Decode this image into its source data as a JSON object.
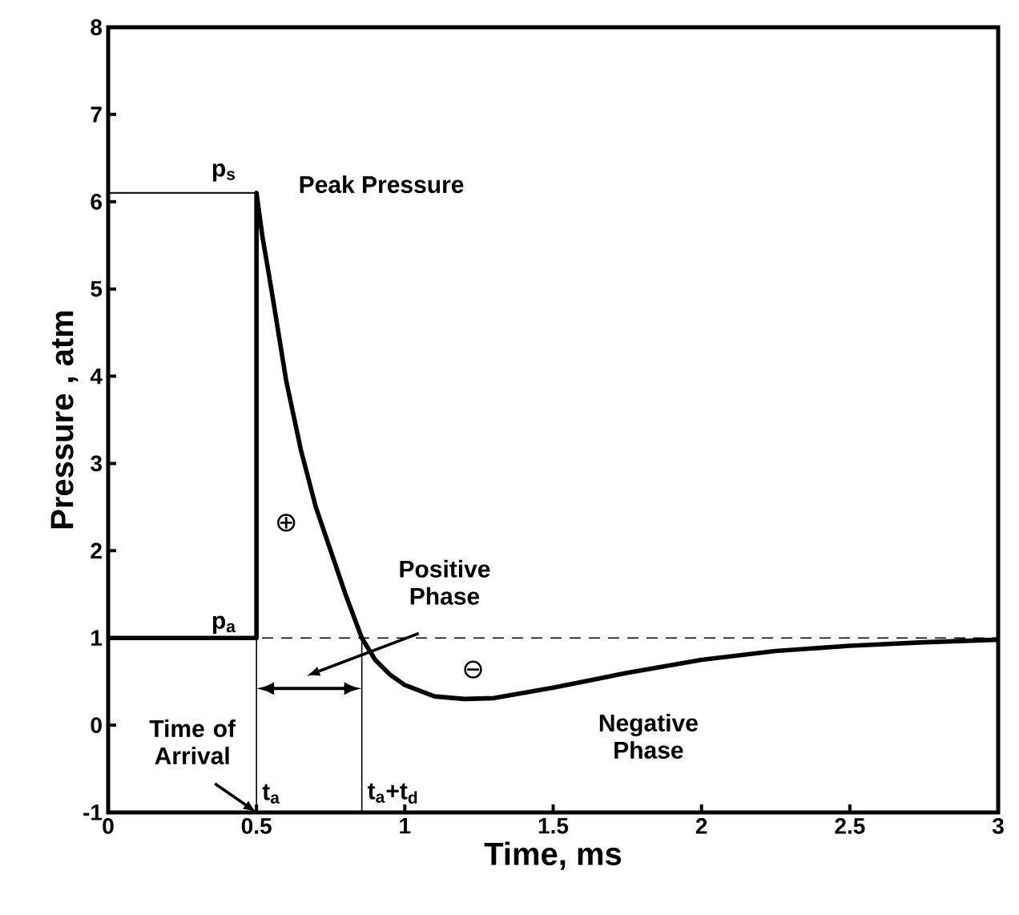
{
  "chart_data": {
    "type": "line",
    "xlabel": "Time, ms",
    "ylabel": "Pressure , atm",
    "xlim": [
      0,
      3
    ],
    "ylim": [
      -1,
      8
    ],
    "xticks": [
      0,
      0.5,
      1,
      1.5,
      2,
      2.5,
      3
    ],
    "yticks": [
      -1,
      0,
      1,
      2,
      3,
      4,
      5,
      6,
      7,
      8
    ],
    "marker": "none",
    "series": [
      {
        "color": "#000000",
        "x": [
          0,
          0.5,
          0.5,
          0.52,
          0.55,
          0.6,
          0.65,
          0.7,
          0.75,
          0.8,
          0.855,
          0.9,
          0.95,
          1.0,
          1.1,
          1.2,
          1.3,
          1.5,
          1.75,
          2.0,
          2.25,
          2.5,
          2.75,
          3.0
        ],
        "values": [
          1,
          1,
          6.1,
          5.6,
          5.0,
          3.95,
          3.15,
          2.5,
          2.0,
          1.5,
          1.0,
          0.75,
          0.58,
          0.46,
          0.33,
          0.3,
          0.31,
          0.43,
          0.6,
          0.75,
          0.85,
          0.91,
          0.95,
          0.98
        ]
      },
      {
        "color": "#000000",
        "x": [
          0,
          0.5
        ],
        "values": [
          6.1,
          6.1
        ]
      }
    ],
    "ref_lines": [
      {
        "axis": "y",
        "value": 1,
        "line_style": "dashed",
        "color": "#000000"
      },
      {
        "axis": "x",
        "value": 0.5,
        "label": "t$_{a}$",
        "color": "#000000"
      },
      {
        "axis": "x",
        "value": 0.855,
        "label": "t$_{a}$+t$_{d}$",
        "color": "#000000"
      }
    ],
    "annotations": [
      "p$_{s}$",
      "Peak Pressure",
      "p$_{a}$",
      "⊕",
      "Positive Phase",
      "⊖",
      "Negative Phase",
      {
        "text": "Time of Arrival",
        "x": 0.5,
        "y": -1
      }
    ]
  }
}
